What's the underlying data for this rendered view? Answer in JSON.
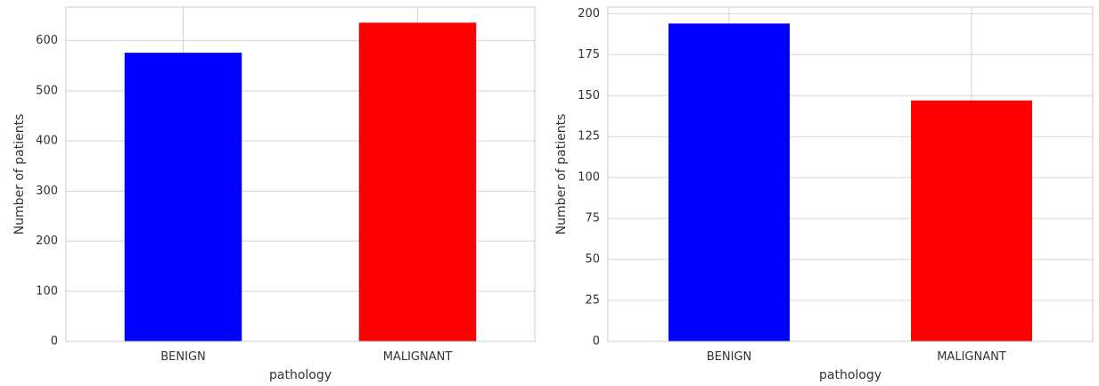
{
  "chart_data": [
    {
      "type": "bar",
      "title": "",
      "xlabel": "pathology",
      "ylabel": "Number of patients",
      "categories": [
        "BENIGN",
        "MALIGNANT"
      ],
      "values": [
        576,
        636
      ],
      "colors": [
        "#0000ff",
        "#ff0000"
      ],
      "ylim": [
        0,
        667
      ],
      "yticks": [
        0,
        100,
        200,
        300,
        400,
        500,
        600
      ],
      "grid": true,
      "legend": "none"
    },
    {
      "type": "bar",
      "title": "",
      "xlabel": "pathology",
      "ylabel": "Number of patients",
      "categories": [
        "BENIGN",
        "MALIGNANT"
      ],
      "values": [
        194,
        147
      ],
      "colors": [
        "#0000ff",
        "#ff0000"
      ],
      "ylim": [
        0,
        204
      ],
      "yticks": [
        0,
        25,
        50,
        75,
        100,
        125,
        150,
        175,
        200
      ],
      "grid": true,
      "legend": "none"
    }
  ]
}
